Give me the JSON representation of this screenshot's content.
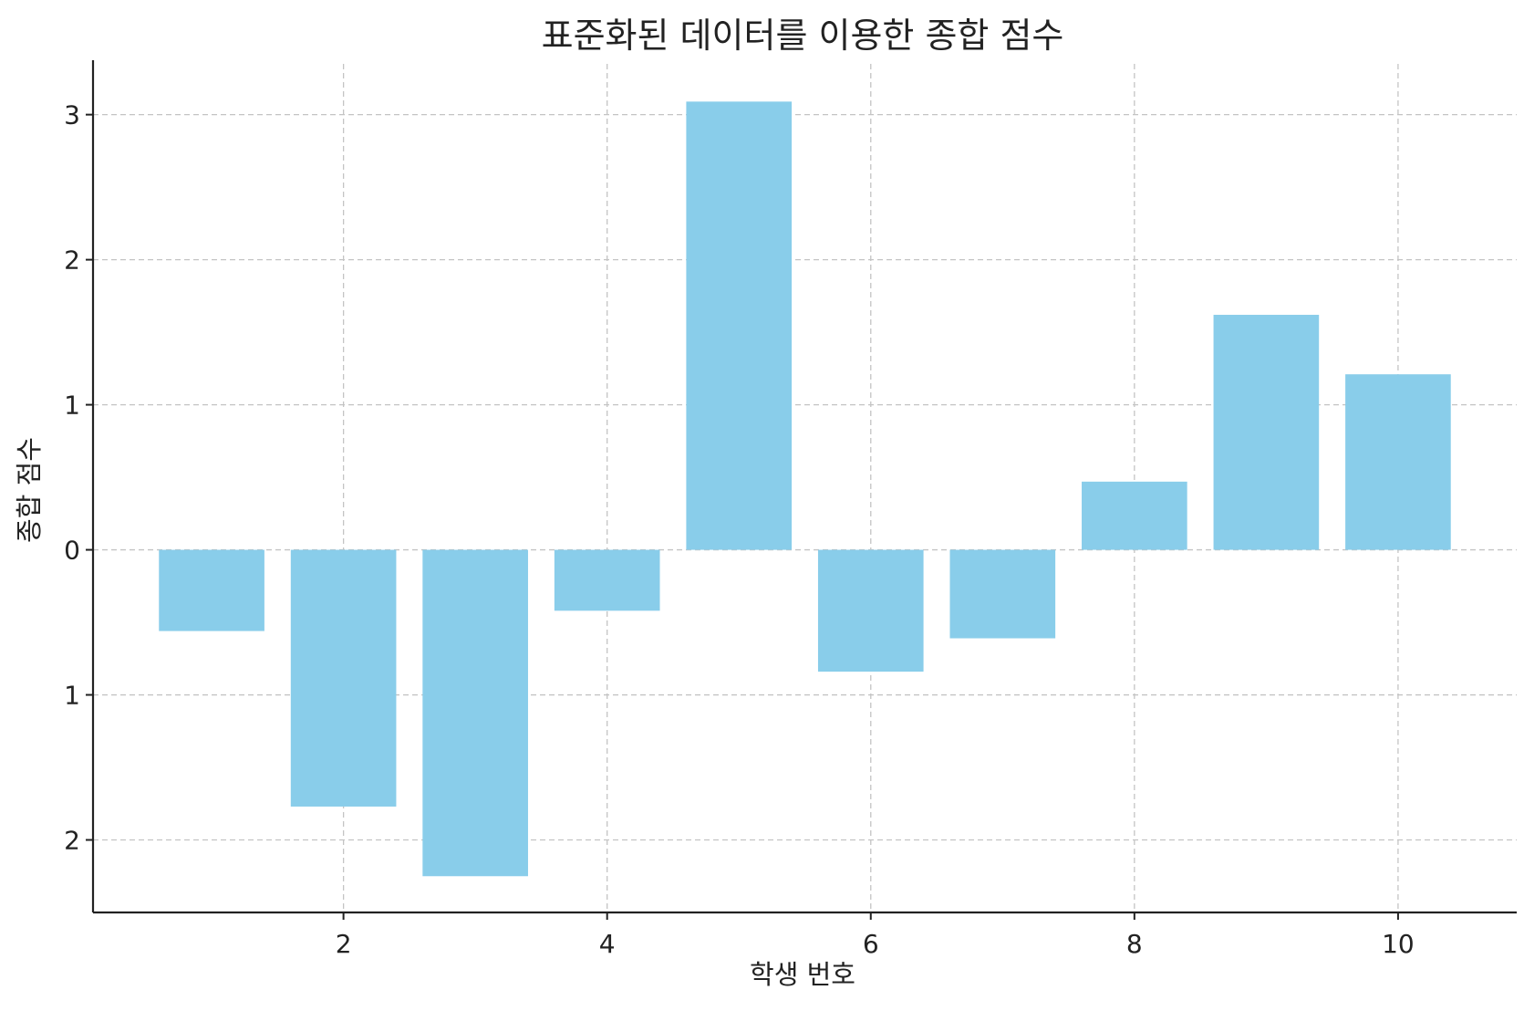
{
  "chart_data": {
    "type": "bar",
    "title": "표준화된 데이터를 이용한 종합 점수",
    "xlabel": "학생 번호",
    "ylabel": "종합 점수",
    "x": [
      1,
      2,
      3,
      4,
      5,
      6,
      7,
      8,
      9,
      10
    ],
    "values": [
      -0.56,
      -1.77,
      -2.25,
      -0.42,
      3.09,
      -0.84,
      -0.61,
      0.47,
      1.62,
      1.21
    ],
    "xlim": [
      0.1,
      10.9
    ],
    "ylim": [
      -2.5,
      3.35
    ],
    "x_ticks": [
      {
        "value": 2,
        "label": "2"
      },
      {
        "value": 4,
        "label": "4"
      },
      {
        "value": 6,
        "label": "6"
      },
      {
        "value": 8,
        "label": "8"
      },
      {
        "value": 10,
        "label": "10"
      }
    ],
    "y_ticks": [
      {
        "value": 3,
        "label": "3"
      },
      {
        "value": 2,
        "label": "2"
      },
      {
        "value": 1,
        "label": "1"
      },
      {
        "value": 0,
        "label": "0"
      },
      {
        "value": -1,
        "label": "1"
      },
      {
        "value": -2,
        "label": "2"
      }
    ],
    "grid": true,
    "bar_color": "#89CDEA"
  }
}
